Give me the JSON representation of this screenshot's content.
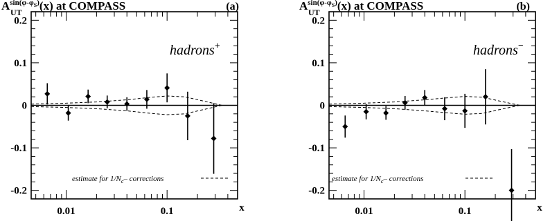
{
  "chart_data": [
    {
      "type": "scatter",
      "panel_label": "(a)",
      "title": {
        "prefix": "A",
        "sub": "UT",
        "sup": "sin(φ-φ",
        "sup_sub": "S",
        "sup_end": ")",
        "suffix": "(x)  at  COMPASS"
      },
      "annotation": {
        "text": "hadrons",
        "charge": "+"
      },
      "legend": {
        "text": "estimate for 1/N",
        "sub": "c",
        "tail": "– corrections"
      },
      "xlabel": "x",
      "x_scale": "log",
      "xlim": [
        0.0045,
        0.5
      ],
      "ylim": [
        -0.22,
        0.22
      ],
      "x_ticks": [
        {
          "value": 0.01,
          "label": "0.01"
        },
        {
          "value": 0.1,
          "label": "0.1"
        }
      ],
      "y_ticks": [
        {
          "value": 0.2,
          "label": "0.2"
        },
        {
          "value": 0.1,
          "label": "0.1"
        },
        {
          "value": 0,
          "label": "0"
        },
        {
          "value": -0.1,
          "label": "-0.1"
        },
        {
          "value": -0.2,
          "label": "-0.2"
        }
      ],
      "points": [
        {
          "x": 0.0065,
          "y": 0.027,
          "err": 0.025
        },
        {
          "x": 0.0105,
          "y": -0.018,
          "err": 0.018
        },
        {
          "x": 0.0165,
          "y": 0.021,
          "err": 0.016
        },
        {
          "x": 0.0255,
          "y": 0.008,
          "err": 0.015
        },
        {
          "x": 0.04,
          "y": 0.003,
          "err": 0.016
        },
        {
          "x": 0.063,
          "y": 0.014,
          "err": 0.022
        },
        {
          "x": 0.1,
          "y": 0.041,
          "err": 0.034
        },
        {
          "x": 0.16,
          "y": -0.025,
          "err": 0.057
        },
        {
          "x": 0.29,
          "y": -0.078,
          "err": 0.083
        }
      ],
      "band": {
        "x": [
          0.0045,
          0.01,
          0.02,
          0.04,
          0.07,
          0.1,
          0.15,
          0.22,
          0.35
        ],
        "upper": [
          0.003,
          0.005,
          0.008,
          0.013,
          0.019,
          0.022,
          0.02,
          0.011,
          0.0
        ],
        "lower": [
          -0.003,
          -0.005,
          -0.008,
          -0.013,
          -0.019,
          -0.022,
          -0.02,
          -0.011,
          0.0
        ]
      }
    },
    {
      "type": "scatter",
      "panel_label": "(b)",
      "title": {
        "prefix": "A",
        "sub": "UT",
        "sup": "sin(φ-φ",
        "sup_sub": "S",
        "sup_end": ")",
        "suffix": "(x)  at  COMPASS"
      },
      "annotation": {
        "text": "hadrons",
        "charge": "−"
      },
      "legend": {
        "text": "estimate for 1/N",
        "sub": "c",
        "tail": "– corrections"
      },
      "xlabel": "x",
      "x_scale": "log",
      "xlim": [
        0.0045,
        0.5
      ],
      "ylim": [
        -0.22,
        0.22
      ],
      "x_ticks": [
        {
          "value": 0.01,
          "label": "0.01"
        },
        {
          "value": 0.1,
          "label": "0.1"
        }
      ],
      "y_ticks": [
        {
          "value": 0.2,
          "label": "0.2"
        },
        {
          "value": 0.1,
          "label": "0.1"
        },
        {
          "value": 0,
          "label": "0"
        },
        {
          "value": -0.1,
          "label": "-0.1"
        },
        {
          "value": -0.2,
          "label": "-0.2"
        }
      ],
      "points": [
        {
          "x": 0.0065,
          "y": -0.05,
          "err": 0.026
        },
        {
          "x": 0.0105,
          "y": -0.015,
          "err": 0.018
        },
        {
          "x": 0.0165,
          "y": -0.018,
          "err": 0.016
        },
        {
          "x": 0.0255,
          "y": 0.006,
          "err": 0.016
        },
        {
          "x": 0.04,
          "y": 0.018,
          "err": 0.018
        },
        {
          "x": 0.063,
          "y": -0.008,
          "err": 0.027
        },
        {
          "x": 0.1,
          "y": -0.013,
          "err": 0.04
        },
        {
          "x": 0.16,
          "y": 0.02,
          "err": 0.065
        },
        {
          "x": 0.29,
          "y": -0.2,
          "err": 0.097
        }
      ],
      "band": {
        "x": [
          0.0045,
          0.01,
          0.02,
          0.04,
          0.07,
          0.1,
          0.15,
          0.22,
          0.35
        ],
        "upper": [
          0.003,
          0.005,
          0.008,
          0.013,
          0.018,
          0.021,
          0.019,
          0.01,
          0.0
        ],
        "lower": [
          -0.003,
          -0.005,
          -0.008,
          -0.013,
          -0.018,
          -0.021,
          -0.019,
          -0.01,
          0.0
        ]
      }
    }
  ]
}
